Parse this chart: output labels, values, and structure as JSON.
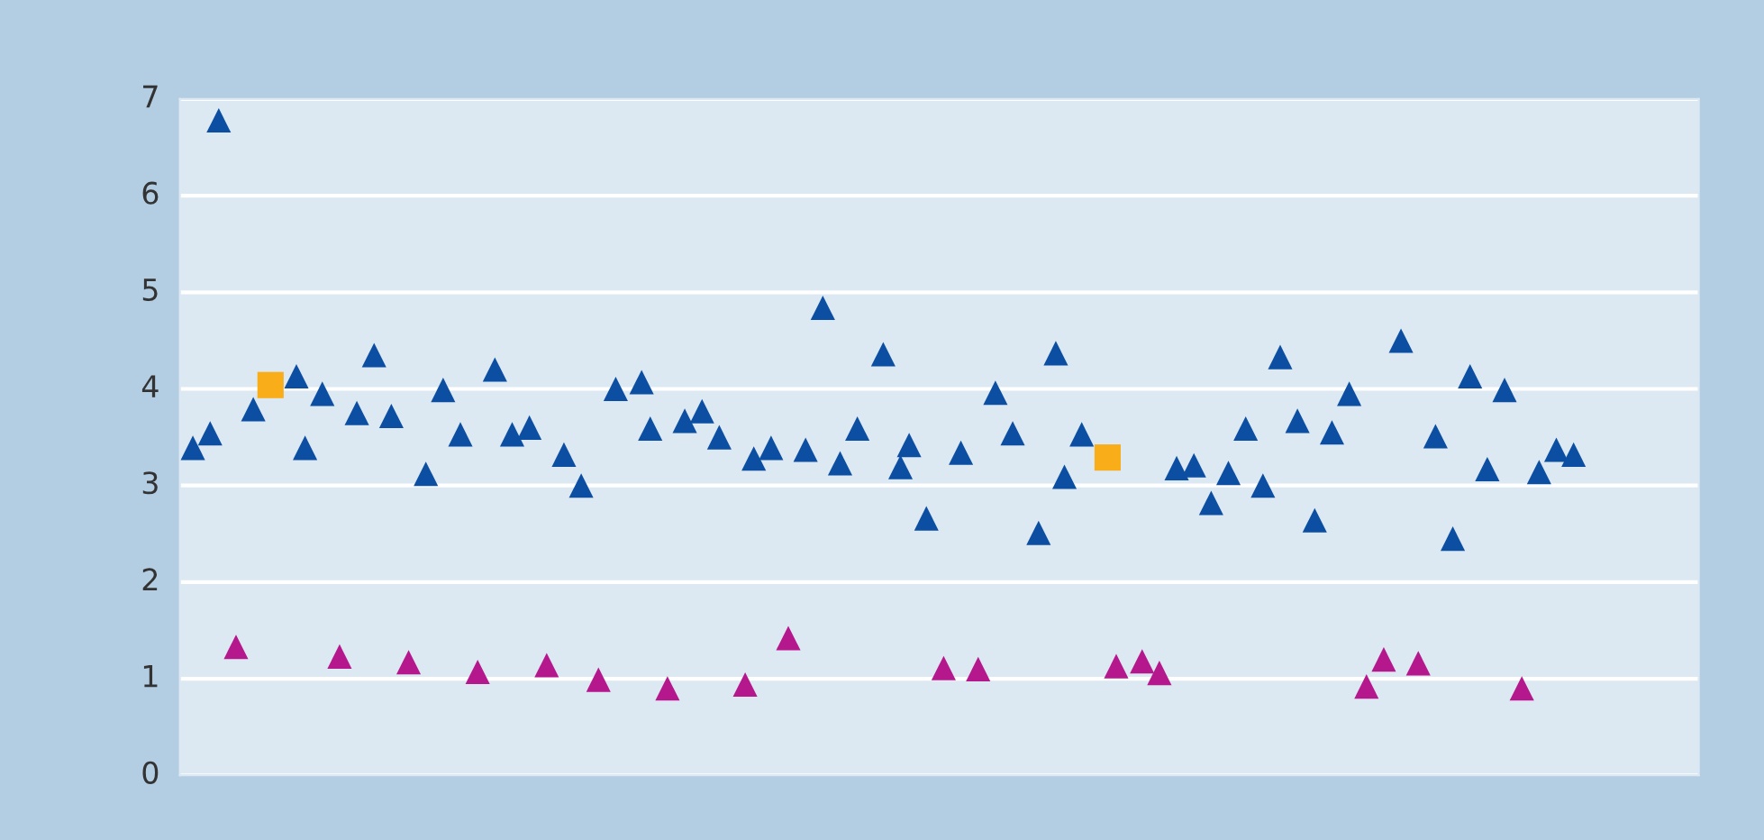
{
  "chart_data": {
    "type": "scatter",
    "ylim": [
      0,
      7
    ],
    "yticks": [
      0,
      1,
      2,
      3,
      4,
      5,
      6,
      7
    ],
    "grid": "y",
    "tick_labels": "y",
    "legend": false,
    "categories": [
      null,
      null,
      null,
      null,
      null,
      null,
      null,
      null,
      null,
      null,
      null,
      null,
      null,
      null,
      null,
      null,
      null,
      null,
      null,
      null,
      null,
      null,
      null,
      null,
      null,
      null,
      null,
      null,
      null,
      null,
      null,
      null,
      null,
      null,
      null,
      null,
      null,
      null,
      null,
      null,
      null,
      null,
      null,
      null,
      null,
      null,
      null,
      null,
      null,
      null,
      null,
      null,
      null,
      null,
      null,
      null,
      null,
      null,
      null,
      null,
      null,
      null,
      null,
      null,
      null,
      null,
      null,
      null,
      null,
      null,
      null,
      null,
      null,
      null,
      null,
      null,
      null,
      null,
      null,
      null,
      null,
      null,
      null,
      null,
      null,
      null,
      null,
      null,
      null,
      null,
      null,
      null,
      null,
      null,
      null,
      null,
      null,
      null,
      null,
      null,
      null,
      null,
      null,
      null,
      null,
      null,
      null,
      null,
      null,
      null,
      null,
      null,
      null,
      null,
      null,
      null,
      null,
      null,
      null,
      null,
      null,
      null,
      null,
      null,
      null,
      null,
      null,
      null,
      null,
      null,
      null,
      null,
      null,
      null,
      null,
      null,
      null,
      null,
      null,
      null,
      null,
      null,
      null,
      null,
      null,
      null,
      null,
      null,
      null,
      null,
      null,
      null,
      null,
      null,
      null,
      null,
      null,
      null,
      null,
      null,
      null,
      null,
      null,
      null,
      null,
      null,
      null,
      null,
      null,
      null,
      null,
      null,
      null,
      null,
      null,
      null
    ],
    "series": [
      {
        "color": "#0b4ea2",
        "marker": "triangle",
        "values": [
          null,
          3.39,
          null,
          3.54,
          6.78,
          null,
          null,
          null,
          3.79,
          null,
          null,
          null,
          null,
          4.13,
          3.39,
          null,
          3.95,
          null,
          null,
          null,
          3.75,
          null,
          4.35,
          null,
          3.72,
          null,
          null,
          null,
          3.12,
          null,
          3.99,
          null,
          3.53,
          null,
          null,
          null,
          4.2,
          null,
          3.53,
          null,
          3.6,
          null,
          null,
          null,
          3.32,
          null,
          3.0,
          null,
          null,
          null,
          4.0,
          null,
          null,
          4.07,
          3.59,
          null,
          null,
          null,
          3.67,
          null,
          3.77,
          null,
          3.5,
          null,
          null,
          null,
          3.28,
          null,
          3.39,
          null,
          null,
          null,
          3.37,
          null,
          4.84,
          null,
          3.23,
          null,
          3.59,
          null,
          null,
          4.36,
          null,
          3.19,
          3.42,
          null,
          2.66,
          null,
          null,
          null,
          3.34,
          null,
          null,
          null,
          3.96,
          null,
          3.54,
          null,
          null,
          2.51,
          null,
          4.37,
          3.09,
          null,
          3.53,
          null,
          null,
          null,
          null,
          null,
          null,
          null,
          null,
          null,
          null,
          3.18,
          null,
          3.21,
          null,
          2.82,
          null,
          3.13,
          null,
          3.59,
          null,
          3.0,
          null,
          4.33,
          null,
          3.67,
          null,
          2.64,
          null,
          3.55,
          null,
          3.95,
          null,
          null,
          null,
          null,
          null,
          4.5,
          null,
          null,
          null,
          3.51,
          null,
          2.45,
          null,
          4.13,
          null,
          3.17,
          null,
          3.99,
          null,
          null,
          null,
          3.14,
          null,
          3.37,
          null,
          3.32,
          null,
          null,
          null,
          null,
          null,
          null,
          null,
          null,
          null,
          null,
          null,
          null,
          null,
          null
        ]
      },
      {
        "color": "#b5178c",
        "marker": "triangle",
        "values": [
          null,
          null,
          null,
          null,
          null,
          null,
          1.33,
          null,
          null,
          null,
          null,
          null,
          null,
          null,
          null,
          null,
          null,
          null,
          1.23,
          null,
          null,
          null,
          null,
          null,
          null,
          null,
          1.17,
          null,
          null,
          null,
          null,
          null,
          null,
          null,
          1.07,
          null,
          null,
          null,
          null,
          null,
          null,
          null,
          1.14,
          null,
          null,
          null,
          null,
          null,
          0.99,
          null,
          null,
          null,
          null,
          null,
          null,
          null,
          0.9,
          null,
          null,
          null,
          null,
          null,
          null,
          null,
          null,
          0.94,
          null,
          null,
          null,
          null,
          1.42,
          null,
          null,
          null,
          null,
          null,
          null,
          null,
          null,
          null,
          null,
          null,
          null,
          null,
          null,
          null,
          null,
          null,
          1.11,
          null,
          null,
          null,
          1.1,
          null,
          null,
          null,
          null,
          null,
          null,
          null,
          null,
          null,
          null,
          null,
          null,
          null,
          null,
          null,
          1.13,
          null,
          null,
          1.18,
          null,
          1.06,
          null,
          null,
          null,
          null,
          null,
          null,
          null,
          null,
          null,
          null,
          null,
          null,
          null,
          null,
          null,
          null,
          null,
          null,
          null,
          null,
          null,
          null,
          null,
          0.92,
          null,
          1.2,
          null,
          null,
          null,
          1.16,
          null,
          null,
          null,
          null,
          null,
          null,
          null,
          null,
          null,
          null,
          null,
          0.9,
          null,
          null,
          null,
          null,
          null,
          null,
          null,
          null,
          null,
          null,
          null,
          null,
          null,
          null,
          null,
          null,
          null,
          null,
          null,
          null
        ]
      },
      {
        "color": "#f9ae19",
        "marker": "square",
        "values": [
          null,
          null,
          null,
          null,
          null,
          null,
          null,
          null,
          null,
          null,
          4.04,
          null,
          null,
          null,
          null,
          null,
          null,
          null,
          null,
          null,
          null,
          null,
          null,
          null,
          null,
          null,
          null,
          null,
          null,
          null,
          null,
          null,
          null,
          null,
          null,
          null,
          null,
          null,
          null,
          null,
          null,
          null,
          null,
          null,
          null,
          null,
          null,
          null,
          null,
          null,
          null,
          null,
          null,
          null,
          null,
          null,
          null,
          null,
          null,
          null,
          null,
          null,
          null,
          null,
          null,
          null,
          null,
          null,
          null,
          null,
          null,
          null,
          null,
          null,
          null,
          null,
          null,
          null,
          null,
          null,
          null,
          null,
          null,
          null,
          null,
          null,
          null,
          null,
          null,
          null,
          null,
          null,
          null,
          null,
          null,
          null,
          null,
          null,
          null,
          null,
          null,
          null,
          null,
          null,
          null,
          null,
          null,
          3.29,
          null,
          null,
          null,
          null,
          null,
          null,
          null,
          null,
          null,
          null,
          null,
          null,
          null,
          null,
          null,
          null,
          null,
          null,
          null,
          null,
          null,
          null,
          null,
          null,
          null,
          null,
          null,
          null,
          null,
          null,
          null,
          null,
          null,
          null,
          null,
          null,
          null,
          null,
          null,
          null,
          null,
          null,
          null,
          null,
          null,
          null,
          null,
          null,
          null,
          null,
          null,
          null,
          null,
          null,
          null,
          null,
          null,
          null,
          null,
          null,
          null,
          null,
          null,
          null,
          null,
          null,
          null,
          null
        ]
      }
    ]
  }
}
